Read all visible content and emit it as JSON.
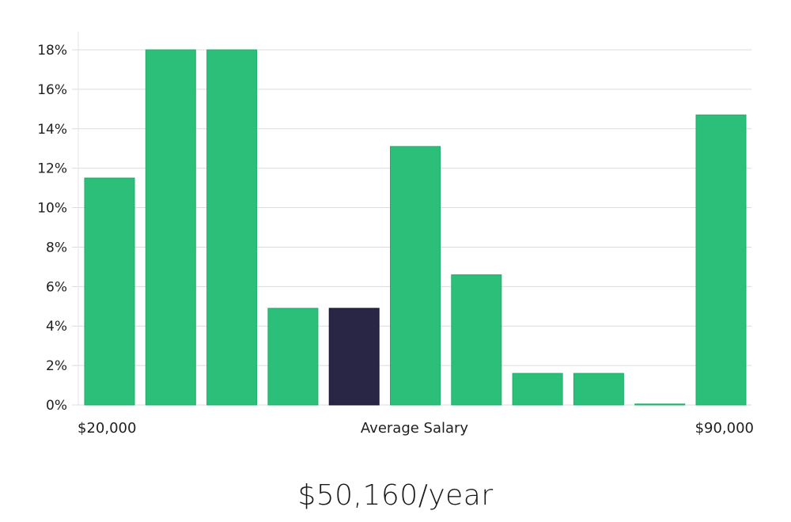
{
  "chart_data": {
    "type": "bar",
    "title": "",
    "xlabel": "Average Salary",
    "ylabel": "",
    "x_start_label": "$20,000",
    "x_end_label": "$90,000",
    "ylim": [
      0,
      18
    ],
    "yticks": [
      0,
      2,
      4,
      6,
      8,
      10,
      12,
      14,
      16,
      18
    ],
    "ytick_labels": [
      "0%",
      "2%",
      "4%",
      "6%",
      "8%",
      "10%",
      "12%",
      "14%",
      "16%",
      "18%"
    ],
    "values": [
      11.5,
      18,
      18,
      4.9,
      4.9,
      13.1,
      6.6,
      1.6,
      1.6,
      0.05,
      14.7
    ],
    "highlight_index": 4,
    "colors": {
      "bar": "#2bbf7a",
      "bar_border": "#22ad6c",
      "highlight": "#282545"
    }
  },
  "summary": {
    "average_salary": "$50,160/year"
  }
}
